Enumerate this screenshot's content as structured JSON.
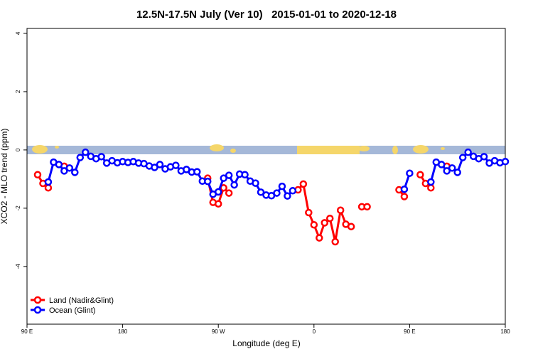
{
  "chart_data": {
    "type": "line",
    "title": "12.5N-17.5N July (Ver 10)   2015-01-01 to 2020-12-18",
    "x_label": "Longitude (deg E)",
    "y_label": "XCO2 - MLO trend (ppm)",
    "x": [
      100,
      105,
      110,
      115,
      120,
      125,
      130,
      135,
      140,
      145,
      150,
      155,
      160,
      165,
      170,
      175,
      180,
      185,
      190,
      195,
      200,
      205,
      210,
      215,
      220,
      225,
      230,
      235,
      240,
      245,
      250,
      255,
      260,
      265,
      270,
      275,
      280,
      285,
      290,
      295,
      300,
      305,
      310,
      315,
      320,
      325,
      330,
      335,
      340,
      345,
      350,
      355,
      360,
      365,
      370,
      375,
      380,
      385,
      390,
      395,
      400,
      405,
      410,
      415,
      420,
      425,
      430,
      435,
      440,
      445,
      450,
      455,
      460,
      465,
      470,
      475,
      480,
      485,
      490,
      495,
      500,
      505,
      510,
      515,
      520,
      525,
      530,
      535,
      540
    ],
    "xlim": [
      90,
      540
    ],
    "xticks": [
      {
        "value": 90,
        "label": "90 E"
      },
      180,
      {
        "value": 270,
        "label": "90 W"
      },
      {
        "value": 360,
        "label": "0"
      },
      {
        "value": 450,
        "label": "90 E"
      },
      {
        "value": 540,
        "label": "180"
      }
    ],
    "ylim": [
      -5.98,
      4.17
    ],
    "yticks": [
      -4,
      -2,
      0,
      2,
      4
    ],
    "legend": "bottom-left",
    "series": [
      {
        "name": "Land (Nadir&Glint)",
        "color": "#ff0000",
        "values": [
          -0.85,
          -1.15,
          -1.3,
          null,
          null,
          -0.56,
          null,
          null,
          null,
          null,
          null,
          null,
          null,
          null,
          null,
          null,
          null,
          null,
          null,
          null,
          null,
          null,
          null,
          null,
          null,
          null,
          null,
          null,
          null,
          null,
          null,
          null,
          -0.97,
          -1.8,
          -1.85,
          -1.3,
          -1.48,
          null,
          null,
          null,
          null,
          null,
          null,
          null,
          null,
          null,
          null,
          null,
          null,
          -1.37,
          -1.17,
          -2.15,
          -2.57,
          -3.02,
          -2.5,
          -2.35,
          -3.15,
          -2.07,
          -2.55,
          -2.63,
          null,
          -1.95,
          -1.95,
          null,
          null,
          null,
          null,
          null,
          -1.37,
          -1.6,
          null,
          null,
          -0.85,
          -1.15,
          -1.3,
          null,
          null,
          -0.56,
          null,
          null,
          null,
          null,
          null,
          null,
          null,
          null,
          null,
          null,
          null
        ]
      },
      {
        "name": "Ocean (Glint)",
        "color": "#0000ff",
        "values": [
          null,
          null,
          -1.1,
          -0.42,
          -0.5,
          -0.72,
          -0.62,
          -0.77,
          -0.26,
          -0.08,
          -0.22,
          -0.3,
          -0.23,
          -0.45,
          -0.37,
          -0.44,
          -0.4,
          -0.43,
          -0.4,
          -0.45,
          -0.47,
          -0.55,
          -0.6,
          -0.5,
          -0.65,
          -0.58,
          -0.53,
          -0.72,
          -0.67,
          -0.76,
          -0.75,
          -1.07,
          -1.08,
          -1.52,
          -1.44,
          -0.97,
          -0.87,
          -1.2,
          -0.83,
          -0.85,
          -1.07,
          -1.14,
          -1.45,
          -1.55,
          -1.57,
          -1.48,
          -1.25,
          -1.58,
          -1.4,
          null,
          null,
          null,
          null,
          null,
          null,
          null,
          null,
          null,
          null,
          null,
          null,
          null,
          null,
          null,
          null,
          null,
          null,
          null,
          null,
          -1.35,
          -0.8,
          null,
          null,
          null,
          -1.1,
          -0.42,
          -0.5,
          -0.72,
          -0.62,
          -0.77,
          -0.26,
          -0.08,
          -0.22,
          -0.3,
          -0.23,
          -0.45,
          -0.37,
          -0.44,
          -0.4
        ]
      }
    ]
  }
}
